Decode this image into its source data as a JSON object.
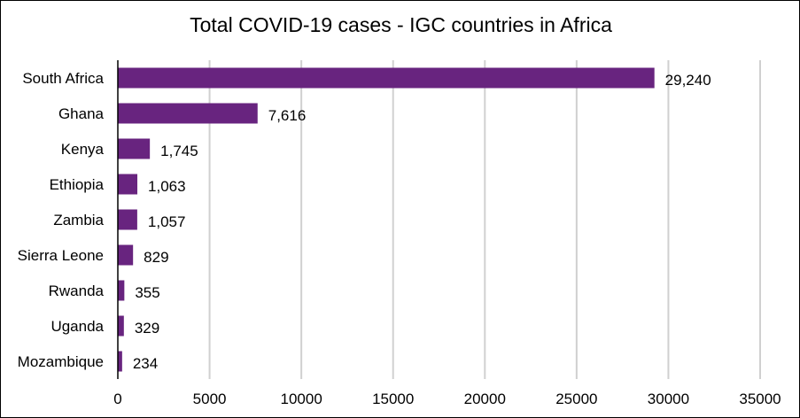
{
  "chart_data": {
    "type": "bar",
    "orientation": "horizontal",
    "title": "Total COVID-19 cases - IGC countries in Africa",
    "categories": [
      "South Africa",
      "Ghana",
      "Kenya",
      "Ethiopia",
      "Zambia",
      "Sierra Leone",
      "Rwanda",
      "Uganda",
      "Mozambique"
    ],
    "values": [
      29240,
      7616,
      1745,
      1063,
      1057,
      829,
      355,
      329,
      234
    ],
    "value_labels": [
      "29,240",
      "7,616",
      "1,745",
      "1,063",
      "1,057",
      "829",
      "355",
      "329",
      "234"
    ],
    "xlim": [
      0,
      35000
    ],
    "xticks": [
      0,
      5000,
      10000,
      15000,
      20000,
      25000,
      30000,
      35000
    ],
    "xtick_labels": [
      "0",
      "5000",
      "10000",
      "15000",
      "20000",
      "25000",
      "30000",
      "35000"
    ],
    "xlabel": "",
    "ylabel": "",
    "grid": "vertical",
    "legend": "none",
    "colors": {
      "bar": "#68247f",
      "grid": "#d0d0d0",
      "axis": "#000000"
    }
  }
}
